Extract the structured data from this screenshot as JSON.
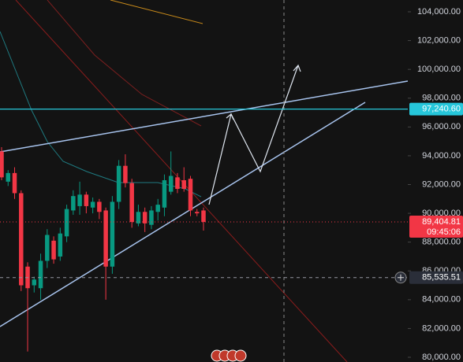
{
  "chart_data": {
    "type": "candlestick",
    "categories": [
      null,
      null,
      null,
      null,
      null,
      null,
      null,
      null,
      null,
      null,
      null,
      null,
      null,
      null,
      null,
      null,
      null,
      null,
      null,
      null,
      null,
      null,
      null,
      null,
      null,
      null,
      null,
      null,
      null,
      null,
      null,
      null
    ],
    "open": [
      94300,
      92200,
      92800,
      91400,
      86300,
      85000,
      84800,
      86700,
      88100,
      87000,
      88400,
      90200,
      90500,
      91300,
      90400,
      90800,
      90200,
      86300,
      90800,
      93300,
      92100,
      89300,
      90100,
      89200,
      90100,
      90400,
      91500,
      92500,
      92300,
      92400,
      90100,
      90200
    ],
    "high": [
      94600,
      93000,
      93200,
      91600,
      86600,
      85600,
      87200,
      88900,
      88400,
      89000,
      90600,
      91600,
      92200,
      91500,
      91100,
      91000,
      90400,
      91200,
      93700,
      94100,
      92400,
      90600,
      90400,
      90500,
      91000,
      92700,
      94300,
      92800,
      93200,
      92600,
      90300,
      90400
    ],
    "low": [
      92300,
      91900,
      91000,
      84600,
      80400,
      84500,
      84000,
      86200,
      86500,
      86700,
      88000,
      89900,
      89900,
      90000,
      90000,
      89600,
      84000,
      85800,
      90300,
      91800,
      89000,
      89100,
      88700,
      88900,
      89500,
      89800,
      91300,
      91400,
      91500,
      89800,
      89800,
      88800
    ],
    "close": [
      92500,
      92800,
      91400,
      85000,
      84800,
      85400,
      86700,
      88500,
      86800,
      88600,
      90300,
      91200,
      91300,
      90500,
      90800,
      90100,
      86300,
      90800,
      93300,
      92100,
      89400,
      90100,
      89300,
      90200,
      90600,
      92300,
      92600,
      91700,
      91700,
      90200,
      90000,
      89404.81
    ],
    "up_color": "#089981",
    "down_color": "#f23645",
    "ylim": [
      80000,
      104000
    ],
    "yticks": [
      {
        "value": 80000,
        "label": "80,000.00"
      },
      {
        "value": 82000,
        "label": "82,000.00"
      },
      {
        "value": 84000,
        "label": "84,000.00"
      },
      {
        "value": 86000,
        "label": "86,000.00"
      },
      {
        "value": 88000,
        "label": "88,000.00"
      },
      {
        "value": 90000,
        "label": "90,000.00"
      },
      {
        "value": 92000,
        "label": "92,000.00"
      },
      {
        "value": 94000,
        "label": "94,000.00"
      },
      {
        "value": 96000,
        "label": "96,000.00"
      },
      {
        "value": 98000,
        "label": "98,000.00"
      },
      {
        "value": 100000,
        "label": "100,000.00"
      },
      {
        "value": 102000,
        "label": "102,000.00"
      },
      {
        "value": 104000,
        "label": "104,000.00"
      }
    ],
    "price_lines": [
      {
        "value": 97240.6,
        "label": "97,240.60",
        "color": "#26c6da"
      },
      {
        "value": 89404.81,
        "label": "89,404.81",
        "color": "#f23645"
      },
      {
        "value": 85535.51,
        "label": "85,535.51",
        "color": "#2a2e39"
      }
    ],
    "countdown": "09:45:06"
  }
}
